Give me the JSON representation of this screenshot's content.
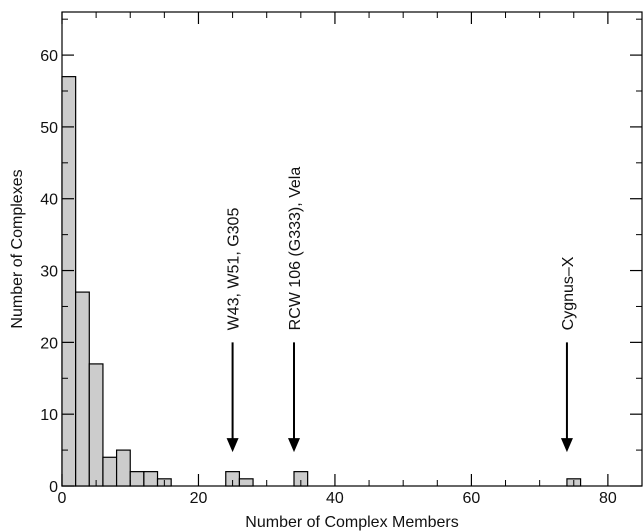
{
  "chart_data": {
    "type": "bar",
    "xlabel": "Number of Complex Members",
    "ylabel": "Number of Complexes",
    "xlim": [
      0,
      85
    ],
    "ylim": [
      0,
      66
    ],
    "bin_width": 2,
    "bins": [
      {
        "x": 1,
        "value": 57
      },
      {
        "x": 3,
        "value": 27
      },
      {
        "x": 5,
        "value": 17
      },
      {
        "x": 7,
        "value": 4
      },
      {
        "x": 9,
        "value": 5
      },
      {
        "x": 11,
        "value": 2
      },
      {
        "x": 13,
        "value": 2
      },
      {
        "x": 15,
        "value": 1
      },
      {
        "x": 25,
        "value": 2
      },
      {
        "x": 27,
        "value": 1
      },
      {
        "x": 35,
        "value": 2
      },
      {
        "x": 75,
        "value": 1
      }
    ],
    "x_ticks_major": [
      {
        "value": 0,
        "label": "0"
      },
      {
        "value": 20,
        "label": "20"
      },
      {
        "value": 40,
        "label": "40"
      },
      {
        "value": 60,
        "label": "60"
      },
      {
        "value": 80,
        "label": "80"
      }
    ],
    "y_ticks_major": [
      {
        "value": 0,
        "label": "0"
      },
      {
        "value": 10,
        "label": "10"
      },
      {
        "value": 20,
        "label": "20"
      },
      {
        "value": 30,
        "label": "30"
      },
      {
        "value": 40,
        "label": "40"
      },
      {
        "value": 50,
        "label": "50"
      },
      {
        "value": 60,
        "label": "60"
      }
    ],
    "annotations": [
      {
        "text": "W43, W51, G305",
        "x": 25,
        "arrow_from": 20,
        "arrow_to": 5
      },
      {
        "text": "RCW 106 (G333), Vela",
        "x": 34,
        "arrow_from": 20,
        "arrow_to": 5
      },
      {
        "text": "Cygnus–X",
        "x": 74,
        "arrow_from": 20,
        "arrow_to": 5
      }
    ],
    "bar_color": "#cccccc",
    "bar_stroke": "#000000",
    "grid": false
  }
}
